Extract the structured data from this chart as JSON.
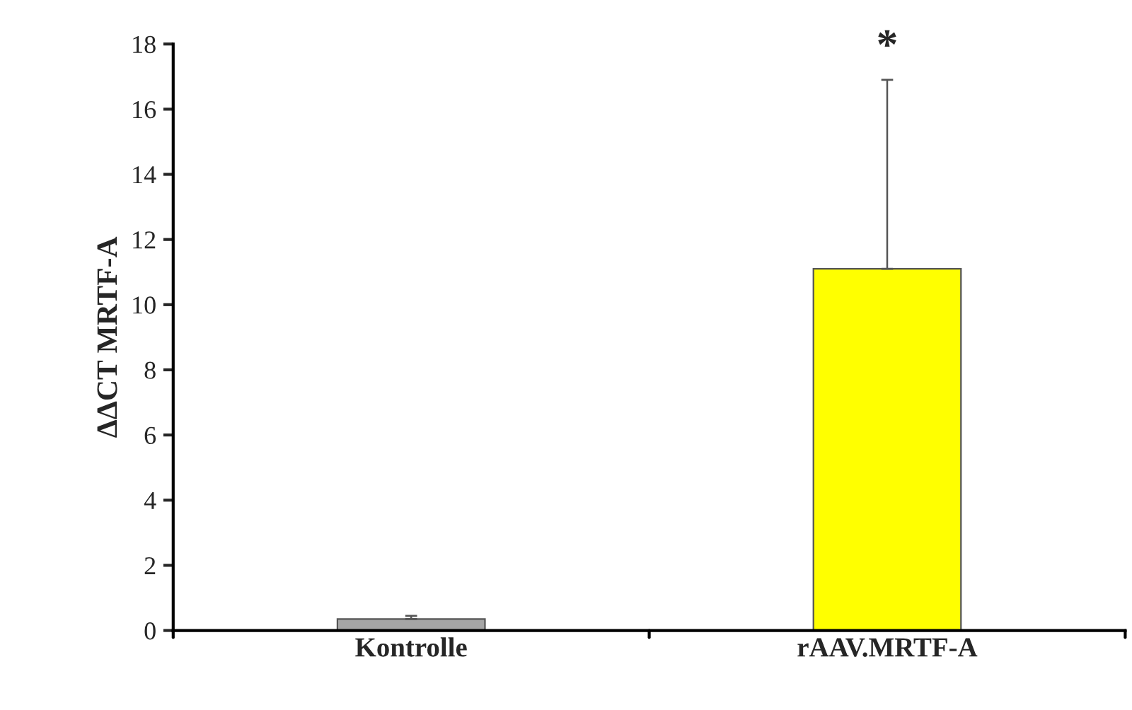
{
  "chart_data": {
    "type": "bar",
    "ylabel": "ΔΔCT MRTF-A",
    "categories": [
      "Kontrolle",
      "rAAV.MRTF-A"
    ],
    "values": [
      0.35,
      11.1
    ],
    "colors": [
      "#a6a6a6",
      "#ffff00"
    ],
    "errors": [
      [
        0.35,
        0.45
      ],
      [
        11.1,
        16.9
      ]
    ],
    "ylim": [
      0,
      18
    ],
    "yticks": [
      0,
      2,
      4,
      6,
      8,
      10,
      12,
      14,
      16,
      18
    ],
    "annotations": [
      "*"
    ],
    "grid": false,
    "legend": false
  }
}
